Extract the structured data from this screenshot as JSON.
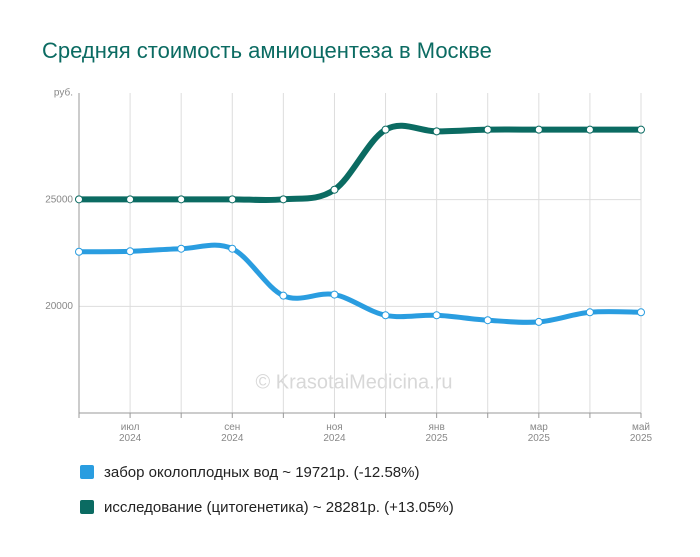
{
  "chart_data": {
    "type": "line",
    "title": "Средняя стоимость амниоцентеза в Москве",
    "watermark": "© KrasotaiMedicina.ru",
    "categories": [
      null,
      "июл 2024",
      null,
      "сен 2024",
      null,
      "ноя 2024",
      null,
      "янв 2025",
      null,
      "мар 2025",
      null,
      "май 2025"
    ],
    "series": [
      {
        "name": "забор околоплодных вод ~ 19721р. (-12.58%)",
        "color": "#2a9de0",
        "values": [
          22559,
          22580,
          22700,
          22700,
          20500,
          20550,
          19580,
          19580,
          19350,
          19270,
          19721,
          19721
        ]
      },
      {
        "name": "исследование (цитогенетика) ~ 28281р. (+13.05%)",
        "color": "#0b6b62",
        "values": [
          25016,
          25016,
          25016,
          25016,
          25016,
          25467,
          28281,
          28200,
          28281,
          28281,
          28281,
          28281
        ]
      }
    ],
    "ylim": [
      15000,
      30000
    ],
    "yticks": [
      20000,
      25000,
      {
        "value": 30000,
        "label": "руб."
      }
    ],
    "grid": true
  }
}
